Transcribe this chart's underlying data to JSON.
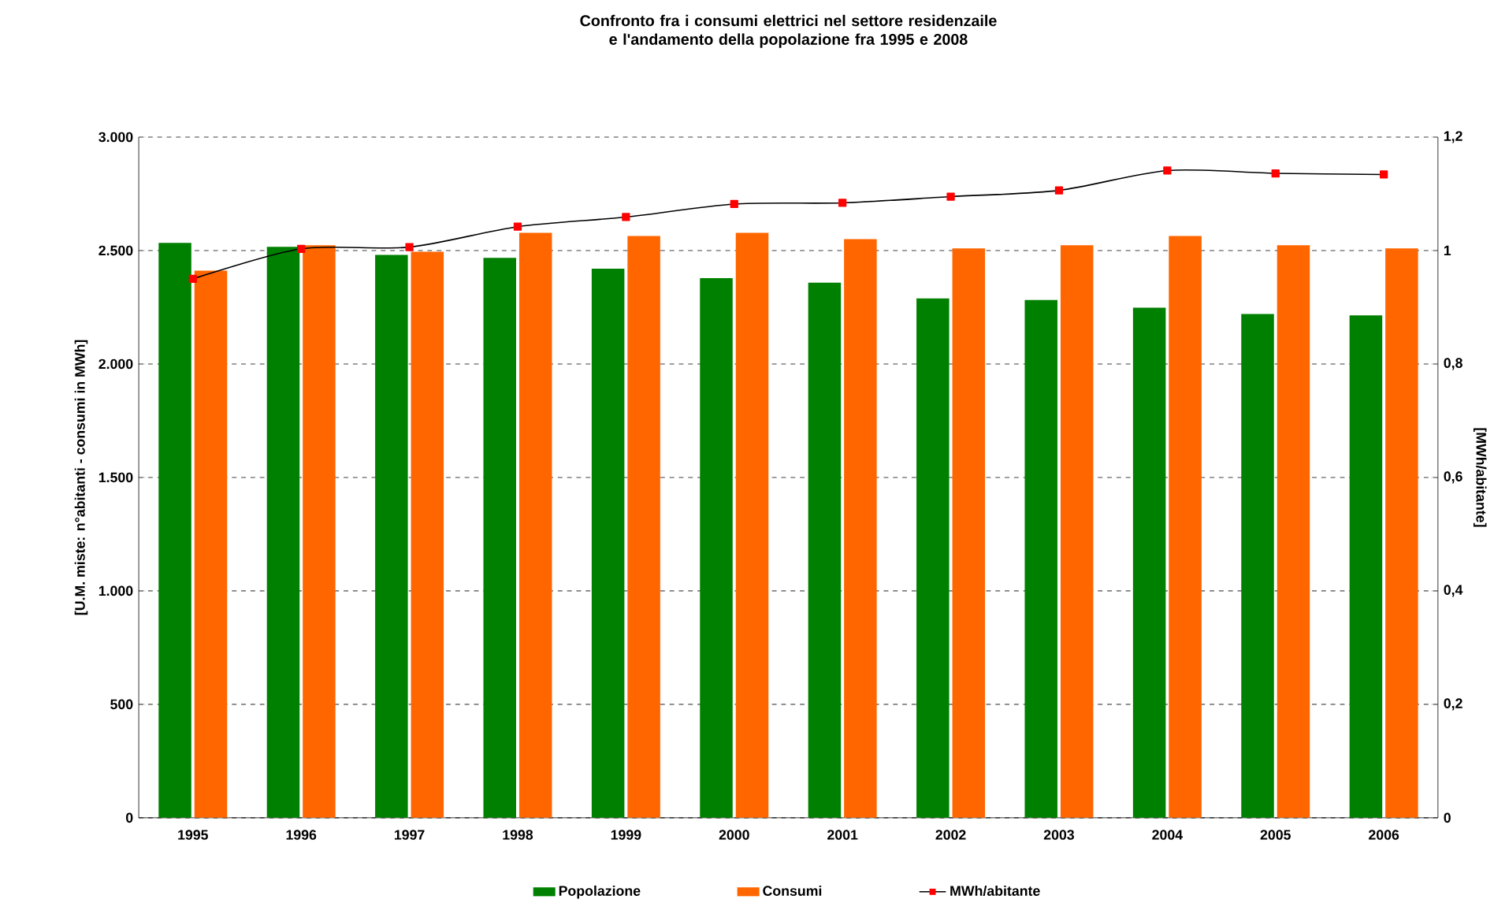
{
  "chart_data": {
    "type": "bar",
    "title": "Confronto fra i consumi elettrici nel settore residenzaile e l'andamento della popolazione fra 1995 e 2008",
    "ylabel": "[U.M. miste: n°abitanti - consumi in MWh]",
    "y2label": "[MWh/abitante]",
    "categories": [
      "1995",
      "1996",
      "1997",
      "1998",
      "1999",
      "2000",
      "2001",
      "2002",
      "2003",
      "2004",
      "2005",
      "2006"
    ],
    "series": [
      {
        "name": "Popolazione",
        "color": "#008000",
        "values": [
          2534,
          2516,
          2481,
          2468,
          2420,
          2378,
          2358,
          2289,
          2282,
          2248,
          2220,
          2214
        ]
      },
      {
        "name": "Consumi",
        "color": "#ff6600",
        "values": [
          2411,
          2523,
          2495,
          2578,
          2564,
          2578,
          2550,
          2509,
          2523,
          2564,
          2523,
          2509
        ]
      },
      {
        "name": "MWh/abitante",
        "type": "line",
        "axis": "y2",
        "color": "#000000",
        "marker": "square",
        "colors": [
          "#ff0000",
          "#ff0000",
          "#ff0000",
          "#ff0000",
          "#ff0000",
          "#ff0000",
          "#ff0000",
          "#ff0000",
          "#ff0000",
          "#ff0000",
          "#ff0000",
          "#ff0000"
        ],
        "values": [
          0.95,
          1.003,
          1.006,
          1.042,
          1.059,
          1.082,
          1.084,
          1.095,
          1.106,
          1.141,
          1.136,
          1.134
        ]
      }
    ],
    "ylim": [
      0,
      3000
    ],
    "yticks": [
      0,
      500,
      {
        "value": 1000,
        "label": "1.000"
      },
      {
        "value": 1500,
        "label": "1.500"
      },
      {
        "value": 2000,
        "label": "2.000"
      },
      {
        "value": 2500,
        "label": "2.500"
      },
      {
        "value": 3000,
        "label": "3.000"
      }
    ],
    "y2lim": [
      0,
      1.2
    ],
    "y2ticks": [
      0,
      {
        "value": 0.2,
        "label": "0,2"
      },
      {
        "value": 0.4,
        "label": "0,4"
      },
      {
        "value": 0.6,
        "label": "0,6"
      },
      {
        "value": 0.8,
        "label": "0,8"
      },
      1,
      {
        "value": 1.2,
        "label": "1,2"
      }
    ],
    "grid": "y",
    "legend": "bottom"
  }
}
